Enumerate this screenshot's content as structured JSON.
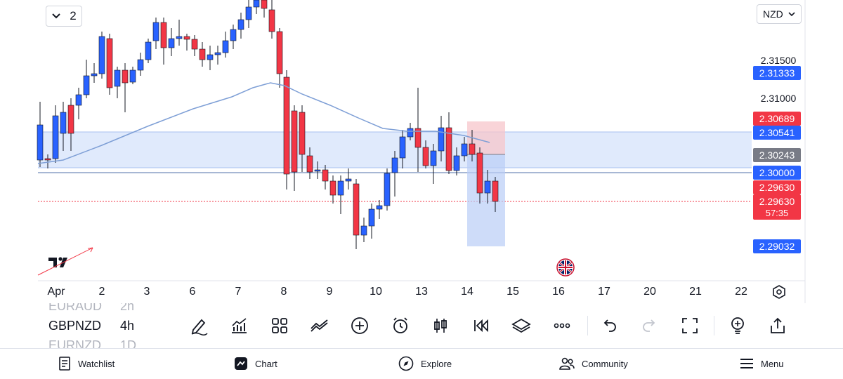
{
  "header": {
    "layout_count": "2",
    "currency": "NZD"
  },
  "price_axis": {
    "labels": [
      "2.31500",
      "2.31000"
    ]
  },
  "price_tags": [
    {
      "text": "2.31333",
      "color": "#2962ff"
    },
    {
      "text": "2.30689",
      "color": "#f23645"
    },
    {
      "text": "2.30541",
      "color": "#2962ff"
    },
    {
      "text": "2.30243",
      "color": "#787b86"
    },
    {
      "text": "2.30000",
      "color": "#2962ff"
    },
    {
      "text": "2.29630",
      "color": "#f23645"
    },
    {
      "text": "2.29630",
      "color": "#f23645"
    },
    {
      "text": "57:35",
      "color": "#f23645"
    },
    {
      "text": "2.29032",
      "color": "#2962ff"
    }
  ],
  "time_axis": {
    "labels": [
      "Apr",
      "2",
      "3",
      "6",
      "7",
      "8",
      "9",
      "10",
      "13",
      "14",
      "15",
      "16",
      "17",
      "20",
      "21",
      "22"
    ]
  },
  "watchlist_preview": [
    {
      "symbol": "EURAUD",
      "interval": "2h"
    },
    {
      "symbol": "GBPNZD",
      "interval": "4h"
    },
    {
      "symbol": "EURNZD",
      "interval": "1D"
    }
  ],
  "toolbar": {
    "icons": [
      "draw-icon",
      "indicators-icon",
      "templates-icon",
      "compare-icon",
      "add-icon",
      "alert-icon",
      "chart-type-icon",
      "replay-icon",
      "layers-icon",
      "more-icon",
      "undo-icon",
      "redo-icon",
      "fullscreen-icon",
      "ideas-icon",
      "share-icon"
    ]
  },
  "bottom_nav": {
    "items": [
      {
        "label": "Watchlist",
        "icon": "watchlist-icon"
      },
      {
        "label": "Chart",
        "icon": "chart-icon"
      },
      {
        "label": "Explore",
        "icon": "explore-icon"
      },
      {
        "label": "Community",
        "icon": "community-icon"
      },
      {
        "label": "Menu",
        "icon": "menu-icon"
      }
    ]
  },
  "colors": {
    "bull": "#2962ff",
    "bear": "#f23645",
    "ma": "#7e9fd6",
    "zone": "#dbe6fb"
  }
}
